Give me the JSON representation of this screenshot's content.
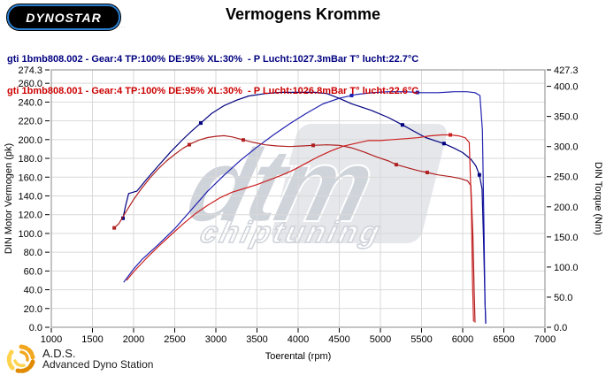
{
  "header": {
    "logo_text": "DYNOSTAR",
    "logo_fineprint": "...",
    "logo_ring_color": "#2b7fd0",
    "title": "Vermogens Kromme"
  },
  "legend": [
    {
      "text": "gti 1bmb808.002 - Gear:4 TP:100% DE:95% XL:30%  - P Lucht:1027.3mBar T° lucht:22.7°C",
      "color": "#000080"
    },
    {
      "text": "gti 1bmb808.001 - Gear:4 TP:100% DE:95% XL:30%  - P Lucht:1026.8mBar T° lucht:22.6°C",
      "color": "#cc0000"
    }
  ],
  "watermark": {
    "line1": "dtm",
    "line2": "chiptuning",
    "color": "#c7ccd4"
  },
  "footer": {
    "ads_abbr": "A.D.S.",
    "ads_name": "Advanced Dyno Station",
    "swirl_colors": [
      "#f2a71f",
      "#ffd34d",
      "#e08a00"
    ]
  },
  "chart_data": {
    "type": "line",
    "title": "Vermogens Kromme",
    "xlabel": "Toerental (rpm)",
    "ylabel_left": "DIN Motor Vermogen (pk)",
    "ylabel_right": "DIN Torque (Nm)",
    "xlim": [
      1000,
      7000
    ],
    "ylim_left": [
      0,
      274.3
    ],
    "ylim_right": [
      0,
      427.3
    ],
    "grid": true,
    "x_tick_values": [
      1000,
      1500,
      2000,
      2500,
      3000,
      3500,
      4000,
      4500,
      5000,
      5500,
      6000,
      6500,
      7000
    ],
    "y_left_tick_values": [
      274.3,
      260,
      240,
      220,
      200,
      180,
      160,
      140,
      120,
      100,
      80,
      60,
      40,
      20,
      0
    ],
    "y_left_tick_labels": [
      "274.3",
      "260.0",
      "240.0",
      "220.0",
      "200.0",
      "180.0",
      "160.0",
      "140.0",
      "120.0",
      "100.0",
      "80.0",
      "60.0",
      "40.0",
      "20.0",
      "0.0"
    ],
    "y_right_tick_values": [
      427.3,
      400,
      350,
      300,
      250,
      200,
      150,
      100,
      50,
      0
    ],
    "y_right_tick_labels": [
      "427.3",
      "400.0",
      "350.0",
      "300.0",
      "250.0",
      "200.0",
      "150.0",
      "100.0",
      "50.0",
      "0.0"
    ],
    "grid_x_values": [
      1500,
      2000,
      2500,
      3000,
      3500,
      4000,
      4500,
      5000,
      5500,
      6000,
      6500
    ],
    "grid_y_left_values": [
      20,
      40,
      60,
      80,
      100,
      120,
      140,
      160,
      180,
      200,
      220,
      240,
      260
    ],
    "series": [
      {
        "name": "gti 1bmb808.002 torque",
        "axis": "right",
        "unit": "Nm",
        "color": "#000080",
        "points": [
          [
            1871,
            181
          ],
          [
            1900,
            200
          ],
          [
            1940,
            222
          ],
          [
            2040,
            226
          ],
          [
            2160,
            246
          ],
          [
            2300,
            268
          ],
          [
            2450,
            291
          ],
          [
            2600,
            312
          ],
          [
            2700,
            325
          ],
          [
            2817,
            339
          ],
          [
            2950,
            355
          ],
          [
            3100,
            368
          ],
          [
            3250,
            377
          ],
          [
            3400,
            384
          ],
          [
            3600,
            388
          ],
          [
            3800,
            390
          ],
          [
            4000,
            390
          ],
          [
            4200,
            390
          ],
          [
            4350,
            388
          ],
          [
            4500,
            380
          ],
          [
            4650,
            371
          ],
          [
            4890,
            360
          ],
          [
            5100,
            348
          ],
          [
            5268,
            336
          ],
          [
            5400,
            326
          ],
          [
            5550,
            315
          ],
          [
            5680,
            309
          ],
          [
            5773,
            305
          ],
          [
            5900,
            297
          ],
          [
            6000,
            290
          ],
          [
            6100,
            279
          ],
          [
            6160,
            268
          ],
          [
            6203,
            253
          ],
          [
            6235,
            230
          ],
          [
            6255,
            140
          ],
          [
            6270,
            50
          ],
          [
            6280,
            6
          ]
        ],
        "marker_rpm": [
          1871,
          2817,
          5268,
          5773,
          6203
        ]
      },
      {
        "name": "gti 1bmb808.002 power",
        "axis": "left",
        "unit": "pk",
        "color": "#2020b0",
        "points": [
          [
            1880,
            48
          ],
          [
            2000,
            62
          ],
          [
            2100,
            72
          ],
          [
            2300,
            88
          ],
          [
            2500,
            105
          ],
          [
            2700,
            125
          ],
          [
            2900,
            145
          ],
          [
            3100,
            162
          ],
          [
            3300,
            178
          ],
          [
            3500,
            192
          ],
          [
            3700,
            205
          ],
          [
            3900,
            217
          ],
          [
            4100,
            228
          ],
          [
            4300,
            238
          ],
          [
            4500,
            244
          ],
          [
            4700,
            248
          ],
          [
            4900,
            250
          ],
          [
            5100,
            251
          ],
          [
            5300,
            251
          ],
          [
            5500,
            250
          ],
          [
            5700,
            250
          ],
          [
            5900,
            251
          ],
          [
            6050,
            251
          ],
          [
            6150,
            250
          ],
          [
            6210,
            247
          ],
          [
            6240,
            210
          ],
          [
            6258,
            110
          ],
          [
            6272,
            25
          ],
          [
            6282,
            4
          ]
        ],
        "marker_rpm": [
          4650,
          5450
        ]
      },
      {
        "name": "gti 1bmb808.001 torque",
        "axis": "right",
        "unit": "Nm",
        "color": "#b02020",
        "points": [
          [
            1765,
            165
          ],
          [
            1820,
            172
          ],
          [
            1900,
            190
          ],
          [
            2000,
            212
          ],
          [
            2100,
            231
          ],
          [
            2200,
            248
          ],
          [
            2300,
            263
          ],
          [
            2400,
            276
          ],
          [
            2500,
            287
          ],
          [
            2600,
            297
          ],
          [
            2700,
            305
          ],
          [
            2800,
            311
          ],
          [
            2900,
            315
          ],
          [
            3000,
            317
          ],
          [
            3100,
            318
          ],
          [
            3200,
            316
          ],
          [
            3333,
            311
          ],
          [
            3450,
            307
          ],
          [
            3600,
            303
          ],
          [
            3742,
            301
          ],
          [
            3900,
            300
          ],
          [
            4050,
            301
          ],
          [
            4183,
            302
          ],
          [
            4350,
            303
          ],
          [
            4500,
            302
          ],
          [
            4650,
            298
          ],
          [
            4800,
            291
          ],
          [
            4950,
            283
          ],
          [
            5100,
            276
          ],
          [
            5193,
            270
          ],
          [
            5350,
            264
          ],
          [
            5460,
            260
          ],
          [
            5569,
            257
          ],
          [
            5700,
            253
          ],
          [
            5850,
            250
          ],
          [
            5970,
            247
          ],
          [
            6060,
            243
          ],
          [
            6100,
            235
          ],
          [
            6125,
            150
          ],
          [
            6140,
            60
          ],
          [
            6150,
            8
          ]
        ],
        "marker_rpm": [
          1765,
          2677,
          3333,
          4183,
          5193,
          5569
        ]
      },
      {
        "name": "gti 1bmb808.001 power",
        "axis": "left",
        "unit": "pk",
        "color": "#cc2020",
        "points": [
          [
            1914,
            50
          ],
          [
            2000,
            59
          ],
          [
            2150,
            73
          ],
          [
            2300,
            86
          ],
          [
            2450,
            98
          ],
          [
            2600,
            110
          ],
          [
            2750,
            121
          ],
          [
            2900,
            130
          ],
          [
            3050,
            138
          ],
          [
            3200,
            144
          ],
          [
            3350,
            148
          ],
          [
            3500,
            152
          ],
          [
            3650,
            157
          ],
          [
            3800,
            162
          ],
          [
            3950,
            168
          ],
          [
            4100,
            175
          ],
          [
            4250,
            182
          ],
          [
            4400,
            188
          ],
          [
            4550,
            193
          ],
          [
            4700,
            196
          ],
          [
            4850,
            199
          ],
          [
            5000,
            199
          ],
          [
            5150,
            200
          ],
          [
            5300,
            201
          ],
          [
            5450,
            202
          ],
          [
            5600,
            204
          ],
          [
            5750,
            205
          ],
          [
            5850,
            205
          ],
          [
            5950,
            204
          ],
          [
            6030,
            202
          ],
          [
            6080,
            197
          ],
          [
            6105,
            130
          ],
          [
            6120,
            45
          ],
          [
            6132,
            6
          ]
        ],
        "marker_rpm": [
          5850
        ]
      }
    ]
  }
}
